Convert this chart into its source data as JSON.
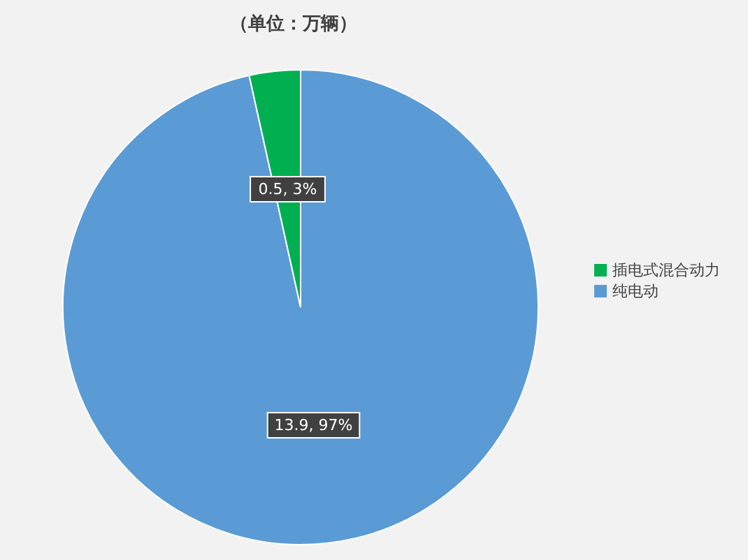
{
  "chart_data": {
    "type": "pie",
    "title": "（单位：万辆）",
    "categories": [
      "纯电动",
      "插电式混合动力"
    ],
    "values": [
      13.9,
      0.5
    ],
    "colors": [
      "#5b9bd5",
      "#00b050"
    ],
    "value_labels": [
      "13.9, 97%",
      "0.5, 3%"
    ],
    "legend": "right"
  }
}
